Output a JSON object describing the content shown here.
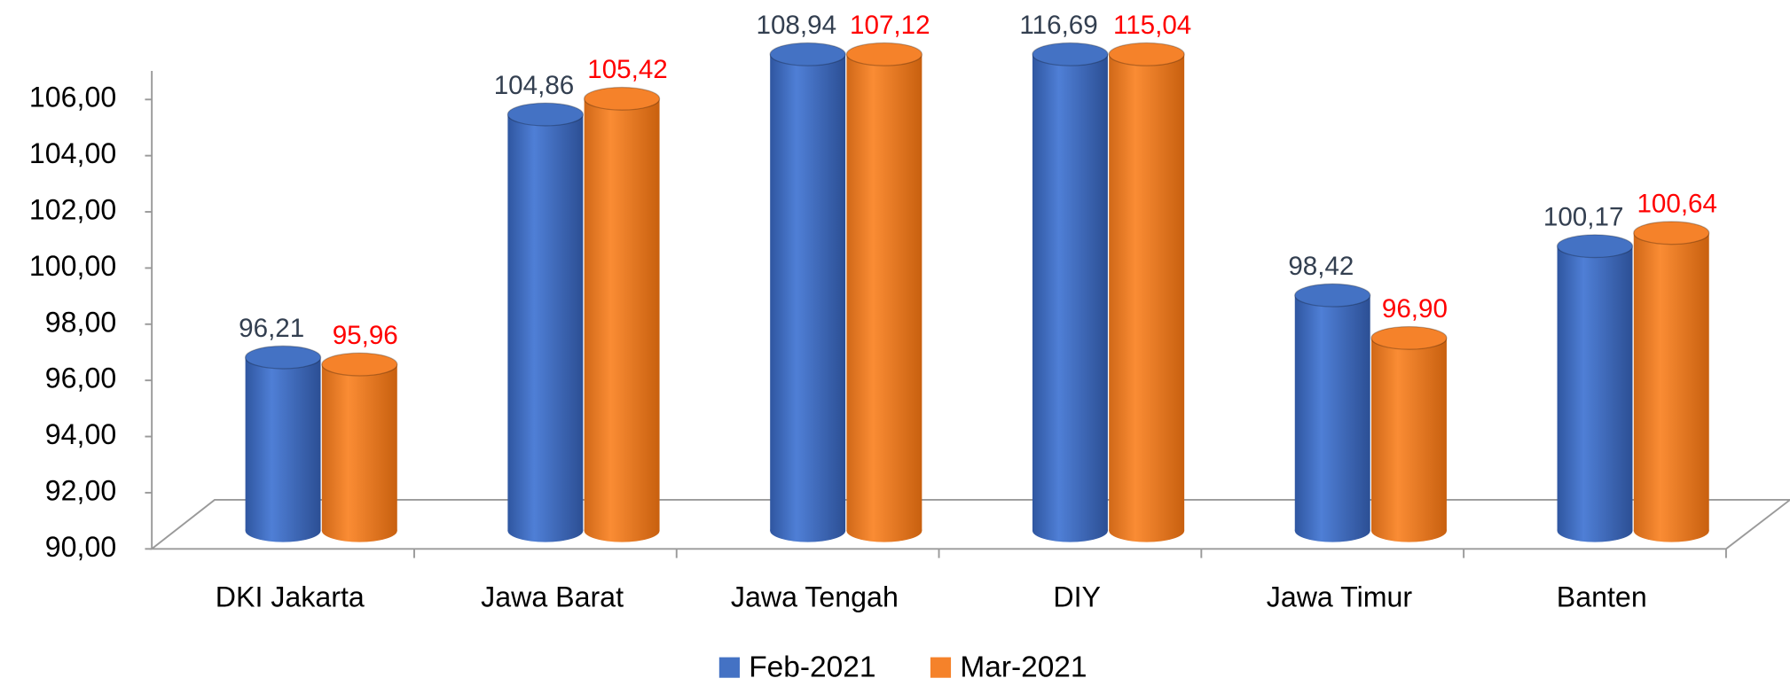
{
  "chart_data": {
    "type": "bar",
    "categories": [
      "DKI Jakarta",
      "Jawa Barat",
      "Jawa Tengah",
      "DIY",
      "Jawa Timur",
      "Banten"
    ],
    "series": [
      {
        "name": "Feb-2021",
        "color": "#4472c4",
        "label_color": "#333f50",
        "values": [
          96.21,
          104.86,
          108.94,
          116.69,
          98.42,
          100.17
        ],
        "value_labels": [
          "96,21",
          "104,86",
          "108,94",
          "116,69",
          "98,42",
          "100,17"
        ]
      },
      {
        "name": "Mar-2021",
        "color": "#f5822a",
        "label_color": "#ff0000",
        "values": [
          95.96,
          105.42,
          107.12,
          115.04,
          96.9,
          100.64
        ],
        "value_labels": [
          "95,96",
          "105,42",
          "107,12",
          "115,04",
          "96,90",
          "100,64"
        ]
      }
    ],
    "ylim": [
      90,
      107
    ],
    "yticks": [
      {
        "value": 90,
        "label": "90,00"
      },
      {
        "value": 92,
        "label": "92,00"
      },
      {
        "value": 94,
        "label": "94,00"
      },
      {
        "value": 96,
        "label": "96,00"
      },
      {
        "value": 98,
        "label": "98,00"
      },
      {
        "value": 100,
        "label": "100,00"
      },
      {
        "value": 102,
        "label": "102,00"
      },
      {
        "value": 104,
        "label": "104,00"
      },
      {
        "value": 106,
        "label": "106,00"
      }
    ],
    "legend": "bottom"
  }
}
